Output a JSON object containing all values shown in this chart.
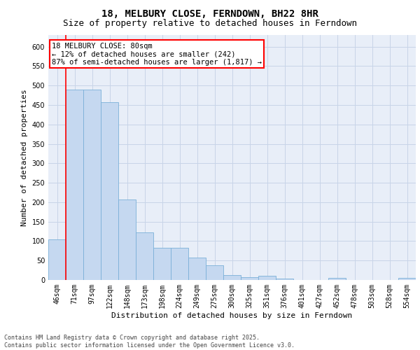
{
  "title1": "18, MELBURY CLOSE, FERNDOWN, BH22 8HR",
  "title2": "Size of property relative to detached houses in Ferndown",
  "xlabel": "Distribution of detached houses by size in Ferndown",
  "ylabel": "Number of detached properties",
  "categories": [
    "46sqm",
    "71sqm",
    "97sqm",
    "122sqm",
    "148sqm",
    "173sqm",
    "198sqm",
    "224sqm",
    "249sqm",
    "275sqm",
    "300sqm",
    "325sqm",
    "351sqm",
    "376sqm",
    "401sqm",
    "427sqm",
    "452sqm",
    "478sqm",
    "503sqm",
    "528sqm",
    "554sqm"
  ],
  "values": [
    105,
    490,
    490,
    458,
    207,
    122,
    82,
    82,
    57,
    38,
    13,
    8,
    11,
    4,
    0,
    0,
    5,
    0,
    0,
    0,
    5
  ],
  "bar_color": "#c5d8f0",
  "bar_edge_color": "#7ab0d8",
  "grid_color": "#c8d4e8",
  "background_color": "#e8eef8",
  "red_line_index": 1,
  "annotation_line1": "18 MELBURY CLOSE: 80sqm",
  "annotation_line2": "← 12% of detached houses are smaller (242)",
  "annotation_line3": "87% of semi-detached houses are larger (1,817) →",
  "ylim": [
    0,
    630
  ],
  "yticks": [
    0,
    50,
    100,
    150,
    200,
    250,
    300,
    350,
    400,
    450,
    500,
    550,
    600
  ],
  "footer": "Contains HM Land Registry data © Crown copyright and database right 2025.\nContains public sector information licensed under the Open Government Licence v3.0.",
  "title_fontsize": 10,
  "subtitle_fontsize": 9,
  "axis_label_fontsize": 8,
  "tick_fontsize": 7,
  "annotation_fontsize": 7.5,
  "footer_fontsize": 6
}
